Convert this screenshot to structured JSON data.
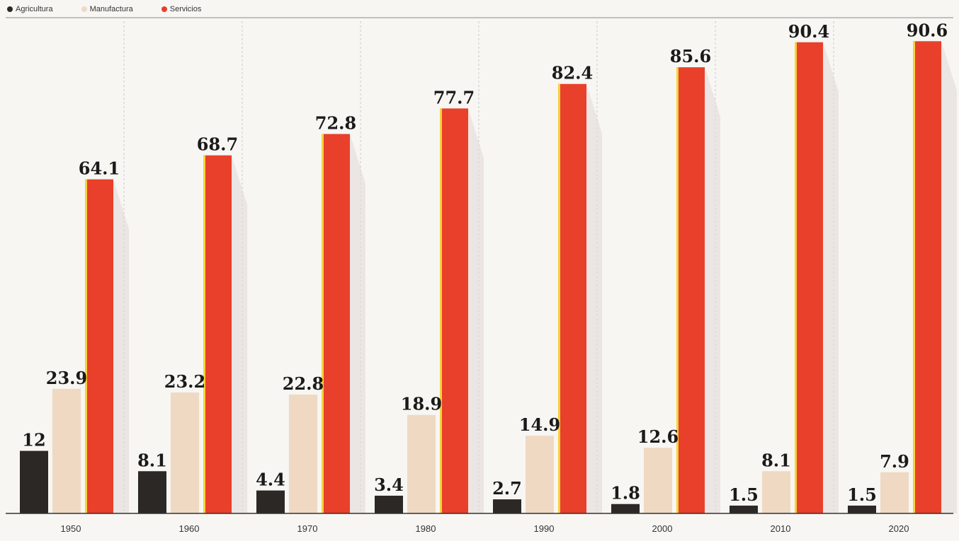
{
  "legend": {
    "items": [
      {
        "label": "Agricultura",
        "color": "#2b2826"
      },
      {
        "label": "Manufactura",
        "color": "#efd9c2"
      },
      {
        "label": "Servicios",
        "color": "#e8402b"
      }
    ]
  },
  "chart_data": {
    "type": "bar",
    "categories": [
      "1950",
      "1960",
      "1970",
      "1980",
      "1990",
      "2000",
      "2010",
      "2020"
    ],
    "series": [
      {
        "name": "Agricultura",
        "values": [
          12,
          8.1,
          4.4,
          3.4,
          2.7,
          1.8,
          1.5,
          1.5
        ],
        "color": "#2b2826"
      },
      {
        "name": "Manufactura",
        "values": [
          23.9,
          23.2,
          22.8,
          18.9,
          14.9,
          12.6,
          8.1,
          7.9
        ],
        "color": "#efd9c2"
      },
      {
        "name": "Servicios",
        "values": [
          64.1,
          68.7,
          72.8,
          77.7,
          82.4,
          85.6,
          90.4,
          90.6
        ],
        "color": "#e8402b"
      }
    ],
    "value_labels": [
      [
        "12",
        "8.1",
        "4.4",
        "3.4",
        "2.7",
        "1.8",
        "1.5",
        "1.5"
      ],
      [
        "23.9",
        "23.2",
        "22.8",
        "18.9",
        "14.9",
        "12.6",
        "8.1",
        "7.9"
      ],
      [
        "64.1",
        "68.7",
        "72.8",
        "77.7",
        "82.4",
        "85.6",
        "90.4",
        "90.6"
      ]
    ],
    "ylim": [
      0,
      100
    ],
    "grid": "vertical dashed separators",
    "legend_position": "top-left"
  }
}
